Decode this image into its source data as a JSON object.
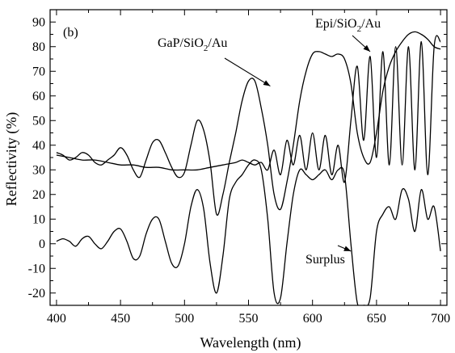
{
  "chart_data": {
    "type": "line",
    "panel_label": "(b)",
    "xlabel": "Wavelength (nm)",
    "ylabel": "Reflectivity (%)",
    "xlim": [
      395,
      705
    ],
    "ylim": [
      -25,
      95
    ],
    "xticks": [
      400,
      450,
      500,
      550,
      600,
      650,
      700
    ],
    "yticks": [
      -20,
      -10,
      0,
      10,
      20,
      30,
      40,
      50,
      60,
      70,
      80,
      90
    ],
    "grid": false,
    "legend": "none",
    "annotations": [
      {
        "id": "gap",
        "prefix": "GaP/SiO",
        "sub": "2",
        "suffix": "/Au",
        "target": [
          567,
          64
        ]
      },
      {
        "id": "epi",
        "prefix": "Epi/SiO",
        "sub": "2",
        "suffix": "/Au",
        "target": [
          645,
          78
        ]
      },
      {
        "id": "surplus",
        "text": "Surplus",
        "target": [
          630,
          -3
        ]
      }
    ],
    "series": [
      {
        "id": "gap-sio2-au",
        "x": [
          400,
          405,
          410,
          415,
          420,
          425,
          430,
          435,
          440,
          445,
          450,
          455,
          460,
          465,
          470,
          475,
          480,
          485,
          490,
          495,
          500,
          505,
          510,
          515,
          520,
          525,
          530,
          535,
          540,
          545,
          550,
          555,
          560,
          565,
          570,
          575,
          580,
          585,
          590,
          595,
          600,
          605,
          610,
          615,
          620,
          625,
          630,
          635,
          640,
          645,
          650,
          655,
          660,
          665,
          670,
          675,
          680,
          685,
          690,
          695,
          700
        ],
        "y": [
          37,
          36,
          34,
          35,
          37,
          36,
          33,
          32,
          34,
          36,
          39,
          36,
          30,
          27,
          34,
          41,
          42,
          37,
          31,
          27,
          29,
          40,
          50,
          46,
          33,
          12,
          20,
          33,
          45,
          58,
          66,
          66,
          55,
          40,
          20,
          14,
          25,
          40,
          58,
          70,
          77,
          78,
          77,
          76,
          77,
          75,
          65,
          45,
          35,
          33,
          45,
          62,
          72,
          78,
          82,
          85,
          86,
          85,
          83,
          80,
          79
        ]
      },
      {
        "id": "epi-sio2-au",
        "x": [
          400,
          410,
          420,
          430,
          440,
          450,
          460,
          470,
          480,
          490,
          500,
          510,
          520,
          530,
          540,
          545,
          550,
          555,
          560,
          565,
          570,
          575,
          580,
          585,
          590,
          595,
          600,
          605,
          610,
          615,
          620,
          625,
          630,
          635,
          640,
          645,
          650,
          655,
          660,
          665,
          670,
          675,
          680,
          685,
          690,
          695,
          700
        ],
        "y": [
          36,
          35,
          34,
          34,
          33,
          32,
          32,
          31,
          31,
          30,
          30,
          30,
          31,
          32,
          33,
          34,
          33,
          32,
          33,
          30,
          38,
          28,
          42,
          32,
          44,
          30,
          45,
          30,
          44,
          28,
          40,
          25,
          50,
          72,
          42,
          76,
          35,
          78,
          32,
          80,
          32,
          80,
          30,
          82,
          28,
          80,
          82
        ]
      },
      {
        "id": "surplus",
        "x": [
          400,
          405,
          410,
          415,
          420,
          425,
          430,
          435,
          440,
          445,
          450,
          455,
          460,
          465,
          470,
          475,
          480,
          485,
          490,
          495,
          500,
          505,
          510,
          515,
          520,
          525,
          530,
          535,
          540,
          545,
          550,
          555,
          560,
          565,
          570,
          575,
          580,
          585,
          590,
          595,
          600,
          605,
          610,
          615,
          620,
          625,
          630,
          635,
          640,
          645,
          650,
          655,
          660,
          665,
          670,
          675,
          680,
          685,
          690,
          695,
          700
        ],
        "y": [
          1,
          2,
          1,
          -1,
          2,
          3,
          0,
          -2,
          1,
          5,
          6,
          1,
          -6,
          -5,
          4,
          10,
          10,
          1,
          -8,
          -9,
          0,
          15,
          22,
          14,
          -8,
          -20,
          -5,
          18,
          25,
          28,
          32,
          34,
          30,
          10,
          -20,
          -22,
          0,
          20,
          30,
          28,
          26,
          28,
          30,
          26,
          30,
          28,
          0,
          -24,
          -25,
          -22,
          5,
          12,
          15,
          10,
          22,
          18,
          5,
          22,
          10,
          15,
          -3
        ]
      }
    ]
  }
}
